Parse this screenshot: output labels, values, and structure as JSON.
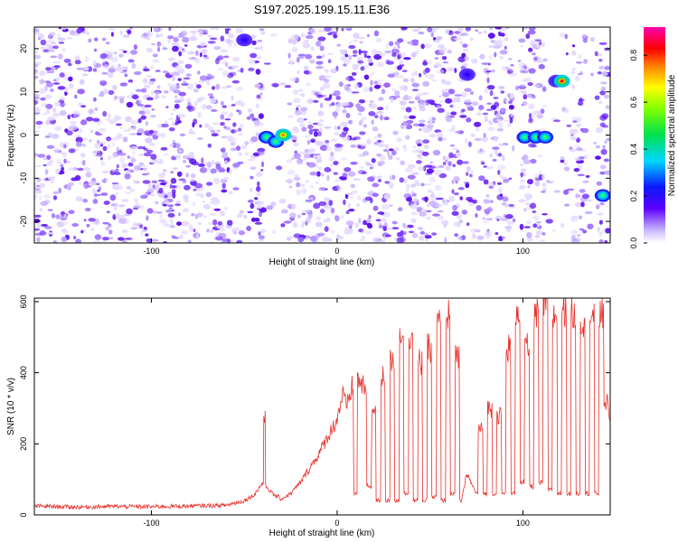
{
  "title": "S197.2025.199.15.11.E36",
  "colors": {
    "snr_line": "#e8302a",
    "spectrogram_dots": "#9a6cff",
    "axis": "#000000",
    "background": "#ffffff"
  },
  "chart_data": [
    {
      "type": "heatmap",
      "title": "S197.2025.199.15.11.E36",
      "xlabel": "Height of straight line (km)",
      "ylabel": "Frequency (Hz)",
      "xlim": [
        -163,
        147
      ],
      "ylim": [
        -25,
        25
      ],
      "x_ticks": [
        -100,
        0,
        100
      ],
      "x_tick_labels": [
        "-100",
        "0",
        "100"
      ],
      "y_ticks": [
        -20,
        -10,
        0,
        10,
        20
      ],
      "y_tick_labels": [
        "-20",
        "-10",
        "0",
        "10",
        "20"
      ],
      "colorbar": {
        "label": "Normalized spectral amplitude",
        "range": [
          0,
          0.92
        ],
        "ticks": [
          0.0,
          0.2,
          0.4,
          0.6,
          0.8
        ],
        "tick_labels": [
          "0.0",
          "0.2",
          "0.4",
          "0.6",
          "0.8"
        ],
        "colormap": "rainbow (white-violet-blue-cyan-green-yellow-red-magenta)"
      },
      "hot_spots": [
        {
          "x": -38,
          "y": -0.5,
          "amplitude": 0.5
        },
        {
          "x": -33,
          "y": -1.5,
          "amplitude": 0.55
        },
        {
          "x": -29,
          "y": 0,
          "amplitude": 0.8
        },
        {
          "x": -50,
          "y": 22,
          "amplitude": 0.15
        },
        {
          "x": 70,
          "y": 14,
          "amplitude": 0.15
        },
        {
          "x": 101,
          "y": -0.5,
          "amplitude": 0.5
        },
        {
          "x": 107,
          "y": -0.5,
          "amplitude": 0.55
        },
        {
          "x": 112,
          "y": -0.5,
          "amplitude": 0.65
        },
        {
          "x": 118,
          "y": 12.5,
          "amplitude": 0.45
        },
        {
          "x": 121,
          "y": 12.5,
          "amplitude": 0.9
        },
        {
          "x": 143,
          "y": -14,
          "amplitude": 0.5
        }
      ],
      "grid": false
    },
    {
      "type": "line",
      "xlabel": "Height of straight line (km)",
      "ylabel": "SNR (10 * v/v)",
      "xlim": [
        -163,
        147
      ],
      "ylim": [
        0,
        610
      ],
      "x_ticks": [
        -100,
        0,
        100
      ],
      "x_tick_labels": [
        "-100",
        "0",
        "100"
      ],
      "y_ticks": [
        0,
        200,
        400,
        600
      ],
      "y_tick_labels": [
        "0",
        "200",
        "400",
        "600"
      ],
      "grid": false,
      "series": [
        {
          "x": [
            -163,
            -140,
            -120,
            -100,
            -80,
            -60,
            -50,
            -45,
            -40,
            -39,
            -38,
            -35,
            -30,
            -25,
            -20,
            -15,
            -10,
            -5,
            0,
            3,
            5,
            8,
            10,
            12,
            15,
            17,
            20,
            22,
            25,
            27,
            30,
            32,
            35,
            37,
            40,
            42,
            45,
            47,
            50,
            52,
            55,
            57,
            60,
            62,
            65,
            67,
            70,
            72,
            75,
            77,
            80,
            82,
            85,
            87,
            90,
            92,
            95,
            97,
            100,
            102,
            105,
            107,
            110,
            112,
            115,
            117,
            120,
            122,
            125,
            127,
            130,
            132,
            135,
            137,
            140,
            142,
            145,
            147
          ],
          "y": [
            25,
            22,
            24,
            23,
            25,
            27,
            40,
            55,
            90,
            270,
            80,
            60,
            45,
            60,
            90,
            130,
            170,
            220,
            270,
            340,
            300,
            360,
            60,
            380,
            350,
            80,
            290,
            40,
            390,
            40,
            440,
            40,
            520,
            60,
            510,
            40,
            430,
            40,
            470,
            50,
            540,
            40,
            560,
            60,
            440,
            40,
            120,
            90,
            60,
            240,
            60,
            300,
            60,
            280,
            60,
            470,
            60,
            580,
            90,
            470,
            80,
            560,
            90,
            600,
            70,
            560,
            60,
            580,
            60,
            560,
            60,
            550,
            60,
            560,
            60,
            560,
            320,
            280
          ]
        }
      ]
    }
  ]
}
